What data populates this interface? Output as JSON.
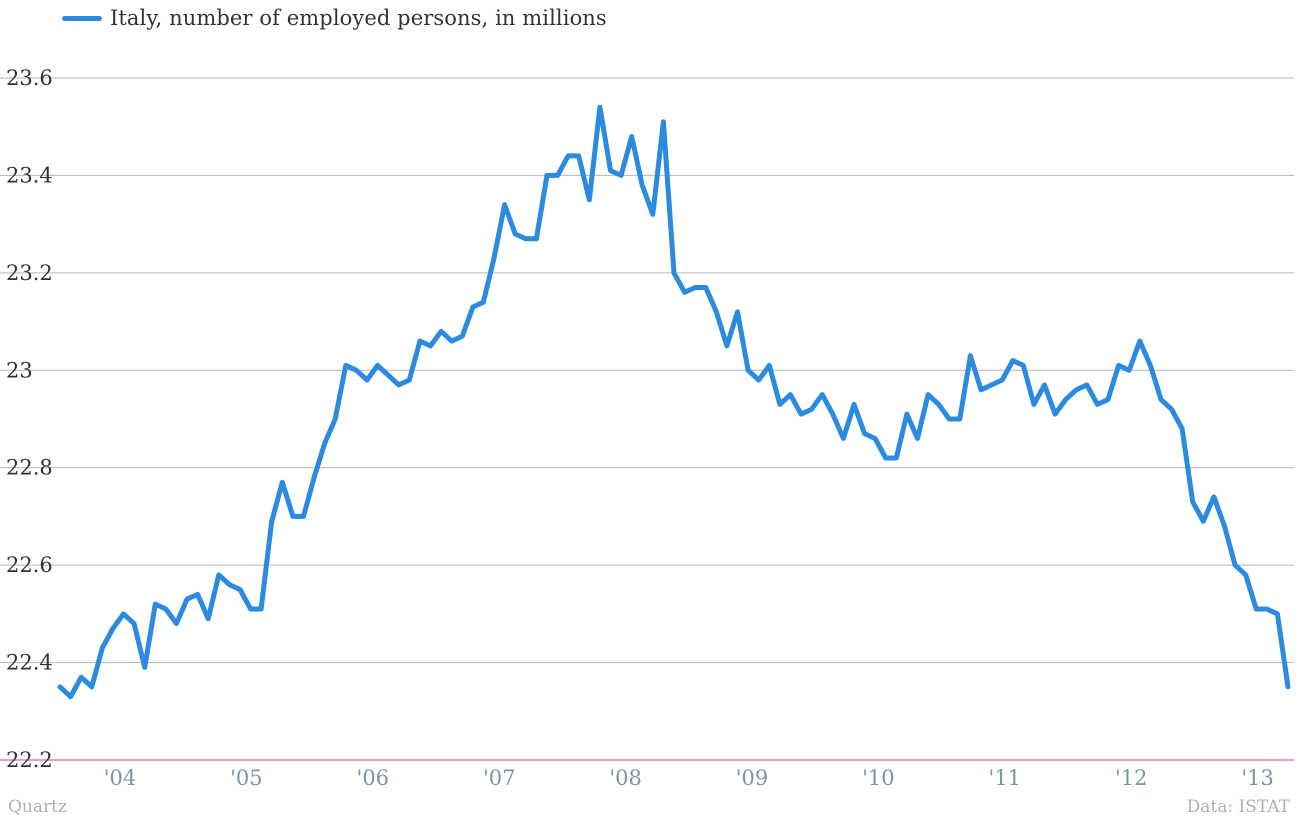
{
  "colors": {
    "series": "#2a8be0",
    "grid": "#b6b6b6",
    "baseline": "#e37fc2",
    "y_tick_text": "#333333",
    "x_tick_text": "#7d93a8",
    "footer_text": "#aab0b8"
  },
  "footer": {
    "source_left": "Quartz",
    "source_right": "Data: ISTAT"
  },
  "chart_data": {
    "type": "line",
    "title": "",
    "xlabel": "",
    "ylabel": "",
    "ylim": [
      22.2,
      23.6
    ],
    "yticks": [
      22.2,
      22.4,
      22.6,
      22.8,
      23,
      23.2,
      23.4,
      23.6
    ],
    "ytick_labels": [
      "22.2",
      "22.4",
      "22.6",
      "22.8",
      "23",
      "23.2",
      "23.4",
      "23.6"
    ],
    "xlim": [
      2004.0,
      2013.25
    ],
    "xticks": [
      2004,
      2005,
      2006,
      2007,
      2008,
      2009,
      2010,
      2011,
      2012,
      2013
    ],
    "xtick_labels": [
      "'04",
      "'05",
      "'06",
      "'07",
      "'08",
      "'09",
      "'10",
      "'11",
      "'12",
      "'13"
    ],
    "grid": true,
    "legend_position": "top-left",
    "series": [
      {
        "name": "Italy, number of employed persons, in millions",
        "color": "#2a8be0",
        "frequency": "monthly",
        "start": "2004-01",
        "values": [
          22.35,
          22.33,
          22.37,
          22.35,
          22.43,
          22.47,
          22.5,
          22.48,
          22.39,
          22.52,
          22.51,
          22.48,
          22.53,
          22.54,
          22.49,
          22.58,
          22.56,
          22.55,
          22.51,
          22.51,
          22.69,
          22.77,
          22.7,
          22.7,
          22.78,
          22.85,
          22.9,
          23.01,
          23.0,
          22.98,
          23.01,
          22.99,
          22.97,
          22.98,
          23.06,
          23.05,
          23.08,
          23.06,
          23.07,
          23.13,
          23.14,
          23.23,
          23.34,
          23.28,
          23.27,
          23.27,
          23.4,
          23.4,
          23.44,
          23.44,
          23.35,
          23.54,
          23.41,
          23.4,
          23.48,
          23.38,
          23.32,
          23.51,
          23.2,
          23.16,
          23.17,
          23.17,
          23.12,
          23.05,
          23.12,
          23.0,
          22.98,
          23.01,
          22.93,
          22.95,
          22.91,
          22.92,
          22.95,
          22.91,
          22.86,
          22.93,
          22.87,
          22.86,
          22.82,
          22.82,
          22.91,
          22.86,
          22.95,
          22.93,
          22.9,
          22.9,
          23.03,
          22.96,
          22.97,
          22.98,
          23.02,
          23.01,
          22.93,
          22.97,
          22.91,
          22.94,
          22.96,
          22.97,
          22.93,
          22.94,
          23.01,
          23.0,
          23.06,
          23.01,
          22.94,
          22.92,
          22.88,
          22.73,
          22.69,
          22.74,
          22.68,
          22.6,
          22.58,
          22.51,
          22.51,
          22.5,
          22.35
        ]
      }
    ]
  }
}
